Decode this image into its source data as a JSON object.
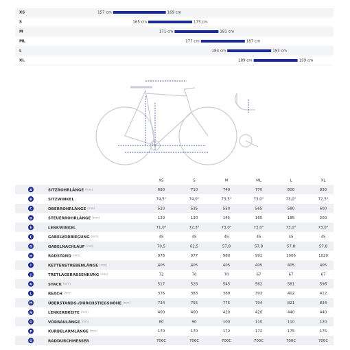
{
  "size_ranges": [
    {
      "size": "XS",
      "from": 157,
      "to": 169,
      "from_label": "157 cm",
      "to_label": "169 cm"
    },
    {
      "size": "S",
      "from": 165,
      "to": 175,
      "from_label": "165 cm",
      "to_label": "175 cm"
    },
    {
      "size": "M",
      "from": 171,
      "to": 181,
      "from_label": "171 cm",
      "to_label": "181 cm"
    },
    {
      "size": "ML",
      "from": 177,
      "to": 187,
      "from_label": "177 cm",
      "to_label": "187 cm"
    },
    {
      "size": "L",
      "from": 183,
      "to": 193,
      "from_label": "183 cm",
      "to_label": "193 cm"
    },
    {
      "size": "XL",
      "from": 189,
      "to": 199,
      "from_label": "189 cm",
      "to_label": "199 cm"
    }
  ],
  "table": {
    "columns": [
      "XS",
      "S",
      "M",
      "ML",
      "L",
      "XL"
    ],
    "rows": [
      {
        "letter": "A",
        "name": "SITZROHRLÄNGE",
        "unit": "(mm)",
        "cells": [
          "680",
          "710",
          "740",
          "770",
          "800",
          "830"
        ]
      },
      {
        "letter": "B",
        "name": "SITZWINKEL",
        "cells": [
          "74,5°",
          "74,0°",
          "73,5°",
          "73,0°",
          "73,0°",
          "72,5°"
        ]
      },
      {
        "letter": "C",
        "name": "OBERROHRLÄNGE",
        "unit": "(mm)",
        "cells": [
          "520",
          "535",
          "550",
          "565",
          "580",
          "600"
        ]
      },
      {
        "letter": "D",
        "name": "STEUERROHRLÄNGE",
        "unit": "(mm)",
        "cells": [
          "120",
          "130",
          "145",
          "165",
          "185",
          "200"
        ]
      },
      {
        "letter": "E",
        "name": "LENKWINKEL",
        "cells": [
          "71,0°",
          "72,3°",
          "73,0°",
          "73,0°",
          "73,0°",
          "73,0°"
        ]
      },
      {
        "letter": "F",
        "name": "GABELVORBIEGUNG",
        "unit": "(mm)",
        "cells": [
          "45",
          "45",
          "45",
          "45",
          "45",
          "45"
        ]
      },
      {
        "letter": "G",
        "name": "GABELNACHLAUF",
        "unit": "(mm)",
        "cells": [
          "70,5",
          "62,5",
          "57,8",
          "57,8",
          "57,8",
          "57,8"
        ]
      },
      {
        "letter": "H",
        "name": "RADSTAND",
        "unit": "(mm)",
        "cells": [
          "976",
          "977",
          "980",
          "991",
          "1006",
          "1020"
        ]
      },
      {
        "letter": "I",
        "name": "KETTENSTREBENLÄNGE",
        "unit": "(mm)",
        "cells": [
          "405",
          "405",
          "405",
          "405",
          "405",
          "405"
        ]
      },
      {
        "letter": "J",
        "name": "TRETLAGERABSENKUNG",
        "unit": "(mm)",
        "cells": [
          "72",
          "70",
          "70",
          "67",
          "67",
          "67"
        ]
      },
      {
        "letter": "K",
        "name": "STACK",
        "unit": "(mm)",
        "cells": [
          "517",
          "528",
          "545",
          "562",
          "581",
          "596"
        ]
      },
      {
        "letter": "L",
        "name": "REACH",
        "unit": "(mm)",
        "cells": [
          "376",
          "383",
          "388",
          "393",
          "402",
          "412"
        ]
      },
      {
        "letter": "M",
        "name": "ÜBERSTANDS-/DURCHSTIEGSHÖHE",
        "unit": "(mm)",
        "cells": [
          "734",
          "755",
          "775",
          "794",
          "821",
          "834"
        ]
      },
      {
        "letter": "N",
        "name": "LENKERBREITE",
        "unit": "(mm)",
        "cells": [
          "400",
          "400",
          "420",
          "420",
          "440",
          "440"
        ]
      },
      {
        "letter": "O",
        "name": "VORBAULÄNGE",
        "unit": "(mm)",
        "cells": [
          "80",
          "90",
          "100",
          "110",
          "110",
          "120"
        ]
      },
      {
        "letter": "P",
        "name": "KURBELARMLÄNGE",
        "unit": "(mm)",
        "cells": [
          "170",
          "170",
          "172",
          "172",
          "175",
          "175"
        ]
      },
      {
        "letter": "Q",
        "name": "RADDURCHMESSER",
        "cells": [
          "700C",
          "700C",
          "700C",
          "700C",
          "700C",
          "700C"
        ]
      }
    ]
  }
}
